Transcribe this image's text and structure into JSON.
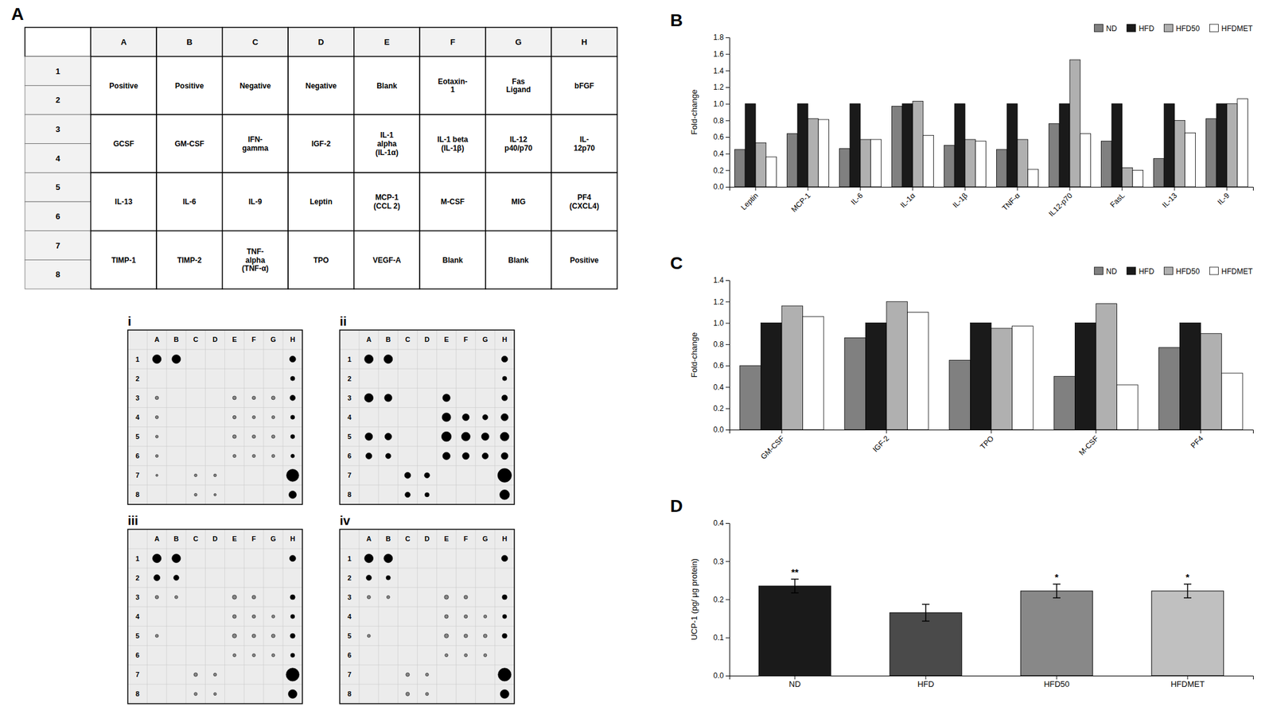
{
  "chart_data": [
    {
      "type": "table",
      "title": "A",
      "columns": [
        "A",
        "B",
        "C",
        "D",
        "E",
        "F",
        "G",
        "H"
      ],
      "row_labels": [
        "1",
        "2",
        "3",
        "4",
        "5",
        "6",
        "7",
        "8"
      ],
      "cells": [
        [
          "Positive",
          "Positive",
          "Negative",
          "Negative",
          "Blank",
          "Eotaxin-\n1",
          "Fas\nLigand",
          "bFGF"
        ],
        [
          "GCSF",
          "GM-CSF",
          "IFN-\ngamma",
          "IGF-2",
          "IL-1\nalpha\n(IL-1α)",
          "IL-1 beta\n(IL-1β)",
          "IL-12\np40/p70",
          "IL-\n12p70"
        ],
        [
          "IL-13",
          "IL-6",
          "IL-9",
          "Leptin",
          "MCP-1\n(CCL 2)",
          "M-CSF",
          "MIG",
          "PF4\n(CXCL4)"
        ],
        [
          "TIMP-1",
          "TIMP-2",
          "TNF-\nalpha\n(TNF-α)",
          "TPO",
          "VEGF-A",
          "Blank",
          "Blank",
          "Positive"
        ]
      ]
    },
    {
      "type": "scatter",
      "title": "i",
      "grid": true,
      "categories": [
        "A",
        "B",
        "C",
        "D",
        "E",
        "F",
        "G",
        "H"
      ],
      "rows": [
        "1",
        "2",
        "3",
        "4",
        "5",
        "6",
        "7",
        "8"
      ],
      "x": [
        "A",
        "B",
        "H",
        "H",
        "A",
        "E",
        "F",
        "G",
        "H",
        "A",
        "E",
        "F",
        "G",
        "H",
        "A",
        "E",
        "F",
        "G",
        "H",
        "A",
        "E",
        "F",
        "G",
        "H",
        "A",
        "C",
        "D",
        "H",
        "C",
        "D",
        "H"
      ],
      "y": [
        "1",
        "1",
        "1",
        "2",
        "3",
        "3",
        "3",
        "3",
        "3",
        "4",
        "4",
        "4",
        "4",
        "4",
        "5",
        "5",
        "5",
        "5",
        "5",
        "6",
        "6",
        "6",
        "6",
        "6",
        "7",
        "7",
        "7",
        "7",
        "8",
        "8",
        "8"
      ],
      "sizes": [
        80,
        80,
        40,
        20,
        12,
        14,
        12,
        14,
        30,
        10,
        12,
        10,
        10,
        18,
        8,
        14,
        12,
        12,
        18,
        8,
        10,
        10,
        10,
        14,
        5,
        8,
        8,
        160,
        8,
        6,
        60
      ],
      "colors": [
        "black",
        "black",
        "black",
        "black",
        "#888888",
        "#888888",
        "#888888",
        "#888888",
        "black",
        "#888888",
        "#888888",
        "#888888",
        "#888888",
        "black",
        "#888888",
        "#888888",
        "#888888",
        "#888888",
        "black",
        "#888888",
        "#888888",
        "#888888",
        "#888888",
        "black",
        "#888888",
        "#888888",
        "#888888",
        "black",
        "#888888",
        "#888888",
        "black"
      ]
    },
    {
      "type": "scatter",
      "title": "ii",
      "grid": true,
      "categories": [
        "A",
        "B",
        "C",
        "D",
        "E",
        "F",
        "G",
        "H"
      ],
      "rows": [
        "1",
        "2",
        "3",
        "4",
        "5",
        "6",
        "7",
        "8"
      ],
      "x": [
        "A",
        "B",
        "H",
        "H",
        "A",
        "B",
        "E",
        "H",
        "E",
        "F",
        "G",
        "H",
        "A",
        "B",
        "E",
        "F",
        "G",
        "H",
        "A",
        "B",
        "E",
        "F",
        "G",
        "H",
        "C",
        "D",
        "H",
        "C",
        "D",
        "H"
      ],
      "y": [
        "1",
        "1",
        "1",
        "2",
        "3",
        "3",
        "3",
        "3",
        "4",
        "4",
        "4",
        "4",
        "5",
        "5",
        "5",
        "5",
        "5",
        "5",
        "6",
        "6",
        "6",
        "6",
        "6",
        "6",
        "7",
        "7",
        "7",
        "8",
        "8",
        "8"
      ],
      "sizes": [
        80,
        80,
        40,
        20,
        80,
        60,
        60,
        35,
        80,
        50,
        30,
        55,
        60,
        50,
        100,
        80,
        60,
        80,
        40,
        30,
        60,
        50,
        40,
        50,
        40,
        30,
        200,
        30,
        20,
        100
      ],
      "colors": [
        "black",
        "black",
        "black",
        "black",
        "black",
        "black",
        "black",
        "black",
        "black",
        "black",
        "black",
        "black",
        "black",
        "black",
        "black",
        "black",
        "black",
        "black",
        "black",
        "black",
        "black",
        "black",
        "black",
        "black",
        "black",
        "black",
        "black",
        "black",
        "black",
        "black"
      ]
    },
    {
      "type": "scatter",
      "title": "iii",
      "grid": true,
      "categories": [
        "A",
        "B",
        "C",
        "D",
        "E",
        "F",
        "G",
        "H"
      ],
      "rows": [
        "1",
        "2",
        "3",
        "4",
        "5",
        "6",
        "7",
        "8"
      ],
      "x": [
        "A",
        "B",
        "H",
        "A",
        "B",
        "A",
        "B",
        "E",
        "F",
        "H",
        "E",
        "F",
        "G",
        "H",
        "A",
        "E",
        "F",
        "G",
        "H",
        "E",
        "F",
        "G",
        "H",
        "C",
        "D",
        "H",
        "C",
        "D",
        "H"
      ],
      "y": [
        "1",
        "1",
        "1",
        "2",
        "2",
        "3",
        "3",
        "3",
        "3",
        "3",
        "4",
        "4",
        "4",
        "4",
        "5",
        "5",
        "5",
        "5",
        "5",
        "6",
        "6",
        "6",
        "6",
        "7",
        "7",
        "7",
        "8",
        "8",
        "8"
      ],
      "sizes": [
        80,
        80,
        40,
        40,
        30,
        12,
        10,
        18,
        14,
        25,
        14,
        12,
        10,
        18,
        10,
        18,
        14,
        14,
        25,
        10,
        10,
        10,
        18,
        14,
        10,
        180,
        10,
        8,
        80
      ],
      "colors": [
        "black",
        "black",
        "black",
        "black",
        "black",
        "#888888",
        "#888888",
        "#888888",
        "#888888",
        "black",
        "#888888",
        "#888888",
        "#888888",
        "black",
        "#888888",
        "#888888",
        "#888888",
        "#888888",
        "black",
        "#888888",
        "#888888",
        "#888888",
        "black",
        "#888888",
        "#888888",
        "black",
        "#888888",
        "#888888",
        "black"
      ]
    },
    {
      "type": "scatter",
      "title": "iv",
      "grid": true,
      "categories": [
        "A",
        "B",
        "C",
        "D",
        "E",
        "F",
        "G",
        "H"
      ],
      "rows": [
        "1",
        "2",
        "3",
        "4",
        "5",
        "6",
        "7",
        "8"
      ],
      "x": [
        "A",
        "B",
        "H",
        "A",
        "B",
        "A",
        "B",
        "E",
        "F",
        "H",
        "E",
        "F",
        "G",
        "H",
        "A",
        "E",
        "F",
        "G",
        "H",
        "E",
        "F",
        "G",
        "C",
        "D",
        "H",
        "C",
        "D",
        "H"
      ],
      "y": [
        "1",
        "1",
        "1",
        "2",
        "2",
        "3",
        "3",
        "3",
        "3",
        "3",
        "4",
        "4",
        "4",
        "4",
        "5",
        "5",
        "5",
        "5",
        "5",
        "6",
        "6",
        "6",
        "7",
        "7",
        "7",
        "8",
        "8",
        "8"
      ],
      "sizes": [
        80,
        80,
        40,
        30,
        20,
        12,
        10,
        18,
        14,
        25,
        14,
        12,
        10,
        18,
        10,
        18,
        14,
        14,
        25,
        10,
        10,
        10,
        14,
        10,
        180,
        14,
        10,
        80
      ],
      "colors": [
        "black",
        "black",
        "black",
        "black",
        "black",
        "#888888",
        "#888888",
        "#888888",
        "#888888",
        "black",
        "#888888",
        "#888888",
        "#888888",
        "black",
        "#888888",
        "#888888",
        "#888888",
        "#888888",
        "black",
        "#888888",
        "#888888",
        "#888888",
        "#888888",
        "#888888",
        "black",
        "#888888",
        "#888888",
        "black"
      ]
    },
    {
      "type": "bar",
      "title": "B",
      "categories": [
        "Leptin",
        "MCP-1",
        "IL-6",
        "IL-1α",
        "IL-1β",
        "TNF-α",
        "IL12-p70",
        "FasL",
        "IL-13",
        "IL-9"
      ],
      "series": [
        {
          "name": "ND",
          "color": "#808080",
          "values": [
            0.45,
            0.64,
            0.46,
            0.97,
            0.5,
            0.45,
            0.76,
            0.55,
            0.34,
            0.82
          ]
        },
        {
          "name": "HFD",
          "color": "#1a1a1a",
          "values": [
            1.0,
            1.0,
            1.0,
            1.0,
            1.0,
            1.0,
            1.0,
            1.0,
            1.0,
            1.0
          ]
        },
        {
          "name": "HFD50",
          "color": "#b0b0b0",
          "values": [
            0.53,
            0.82,
            0.57,
            1.03,
            0.57,
            0.57,
            1.53,
            0.23,
            0.8,
            1.0
          ]
        },
        {
          "name": "HFDMET",
          "color": "#ffffff",
          "values": [
            0.36,
            0.81,
            0.57,
            0.62,
            0.55,
            0.21,
            0.64,
            0.2,
            0.65,
            1.06
          ]
        }
      ],
      "ylabel": "Fold-change",
      "ylim": [
        0,
        1.8
      ],
      "yticks": [
        {
          "value": 0,
          "label": "0.0"
        },
        0.2,
        0.4,
        0.6,
        0.8,
        {
          "value": 1.0,
          "label": "1.0"
        },
        1.2,
        1.4,
        1.6,
        1.8
      ],
      "legend": "upper right"
    },
    {
      "type": "bar",
      "title": "C",
      "categories": [
        "GM-CSF",
        "IGF-2",
        "TPO",
        "M-CSF",
        "PF4"
      ],
      "series": [
        {
          "name": "ND",
          "color": "#808080",
          "values": [
            0.6,
            0.86,
            0.65,
            0.5,
            0.77
          ]
        },
        {
          "name": "HFD",
          "color": "#1a1a1a",
          "values": [
            1.0,
            1.0,
            1.0,
            1.0,
            1.0
          ]
        },
        {
          "name": "HFD50",
          "color": "#b0b0b0",
          "values": [
            1.16,
            1.2,
            0.95,
            1.18,
            0.9
          ]
        },
        {
          "name": "HFDMET",
          "color": "#ffffff",
          "values": [
            1.06,
            1.1,
            0.97,
            0.42,
            0.53
          ]
        }
      ],
      "ylabel": "Fold-change",
      "ylim": [
        0,
        1.4
      ],
      "yticks": [
        {
          "value": 0,
          "label": "0.0"
        },
        0.2,
        0.4,
        0.6,
        0.8,
        {
          "value": 1.0,
          "label": "1.0"
        },
        1.2,
        1.4
      ],
      "legend": "upper right"
    },
    {
      "type": "bar",
      "title": "D",
      "categories": [
        "ND",
        "HFD",
        "HFD50",
        "HFDMET"
      ],
      "values": [
        0.235,
        0.165,
        0.222,
        0.222
      ],
      "errors": [
        0.018,
        0.022,
        0.018,
        0.018
      ],
      "colors": [
        "#1a1a1a",
        "#4a4a4a",
        "#888888",
        "#c0c0c0"
      ],
      "annotations": [
        "**",
        null,
        "*",
        "*"
      ],
      "ylabel": "UCP-1 (pg/ μg protein)",
      "ylim": [
        0,
        0.4
      ],
      "yticks": [
        {
          "value": 0,
          "label": "0.0"
        },
        0.1,
        0.2,
        0.3,
        0.4
      ]
    }
  ]
}
